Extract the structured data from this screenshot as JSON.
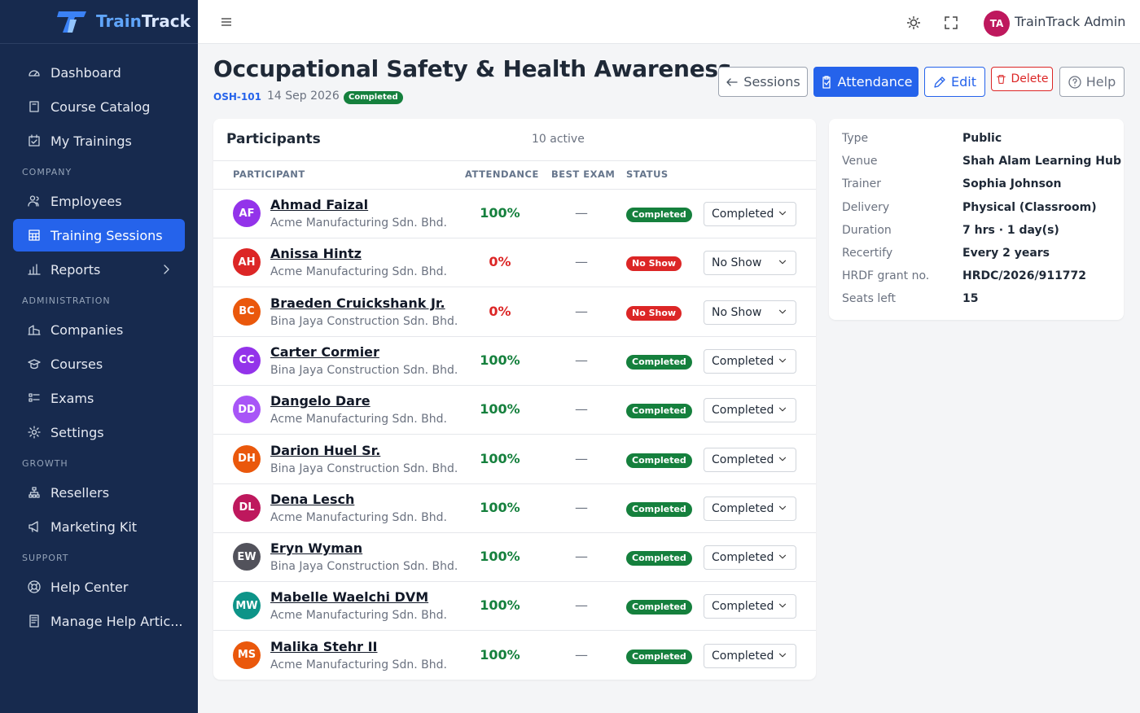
{
  "sidebar": {
    "brand_first": "Train",
    "brand_second": "Track",
    "groups": [
      {
        "items": [
          {
            "label": "Dashboard"
          },
          {
            "label": "Course Catalog"
          },
          {
            "label": "My Trainings"
          }
        ]
      },
      {
        "label": "COMPANY",
        "items": [
          {
            "label": "Employees"
          },
          {
            "label": "Training Sessions",
            "active": true
          },
          {
            "label": "Reports"
          }
        ]
      },
      {
        "label": "ADMINISTRATION",
        "items": [
          {
            "label": "Companies"
          },
          {
            "label": "Courses"
          },
          {
            "label": "Exams"
          },
          {
            "label": "Settings"
          }
        ]
      },
      {
        "label": "GROWTH",
        "items": [
          {
            "label": "Resellers"
          },
          {
            "label": "Marketing Kit"
          }
        ]
      },
      {
        "label": "SUPPORT",
        "items": [
          {
            "label": "Help Center"
          },
          {
            "label": "Manage Help Artic..."
          }
        ]
      }
    ]
  },
  "topbar": {
    "user_initials": "TA",
    "user_name": "TrainTrack Admin"
  },
  "header": {
    "title": "Occupational Safety & Health Awareness",
    "code": "OSH-101",
    "date": "14 Sep 2026",
    "status": "Completed",
    "buttons": [
      "Sessions",
      "Attendance",
      "Edit",
      "Delete",
      "Help"
    ]
  },
  "participants": {
    "title": "Participants",
    "count": "10 active",
    "columns": [
      "PARTICIPANT",
      "ATTENDANCE",
      "BEST EXAM",
      "STATUS"
    ],
    "rows": [
      {
        "initials": "AF",
        "avatar_color": "#9333ea",
        "name": "Ahmad Faizal",
        "company": "Acme Manufacturing Sdn. Bhd.",
        "attendance": "100%",
        "best_exam": "—",
        "status": "Completed",
        "color": "#15803d",
        "select": "Completed"
      },
      {
        "initials": "AH",
        "avatar_color": "#dc2626",
        "name": "Anissa Hintz",
        "company": "Acme Manufacturing Sdn. Bhd.",
        "attendance": "0%",
        "best_exam": "—",
        "status": "No Show",
        "color": "#dc2626",
        "select": "No Show"
      },
      {
        "initials": "BC",
        "avatar_color": "#ea580c",
        "name": "Braeden Cruickshank Jr.",
        "company": "Bina Jaya Construction Sdn. Bhd.",
        "attendance": "0%",
        "best_exam": "—",
        "status": "No Show",
        "color": "#dc2626",
        "select": "No Show"
      },
      {
        "initials": "CC",
        "avatar_color": "#9333ea",
        "name": "Carter Cormier",
        "company": "Bina Jaya Construction Sdn. Bhd.",
        "attendance": "100%",
        "best_exam": "—",
        "status": "Completed",
        "color": "#15803d",
        "select": "Completed"
      },
      {
        "initials": "DD",
        "avatar_color": "#a855f7",
        "name": "Dangelo Dare",
        "company": "Acme Manufacturing Sdn. Bhd.",
        "attendance": "100%",
        "best_exam": "—",
        "status": "Completed",
        "color": "#15803d",
        "select": "Completed"
      },
      {
        "initials": "DH",
        "avatar_color": "#ea580c",
        "name": "Darion Huel Sr.",
        "company": "Bina Jaya Construction Sdn. Bhd.",
        "attendance": "100%",
        "best_exam": "—",
        "status": "Completed",
        "color": "#15803d",
        "select": "Completed"
      },
      {
        "initials": "DL",
        "avatar_color": "#be185d",
        "name": "Dena Lesch",
        "company": "Acme Manufacturing Sdn. Bhd.",
        "attendance": "100%",
        "best_exam": "—",
        "status": "Completed",
        "color": "#15803d",
        "select": "Completed"
      },
      {
        "initials": "EW",
        "avatar_color": "#52525b",
        "name": "Eryn Wyman",
        "company": "Bina Jaya Construction Sdn. Bhd.",
        "attendance": "100%",
        "best_exam": "—",
        "status": "Completed",
        "color": "#15803d",
        "select": "Completed"
      },
      {
        "initials": "MW",
        "avatar_color": "#0d9488",
        "name": "Mabelle Waelchi DVM",
        "company": "Acme Manufacturing Sdn. Bhd.",
        "attendance": "100%",
        "best_exam": "—",
        "status": "Completed",
        "color": "#15803d",
        "select": "Completed"
      },
      {
        "initials": "MS",
        "avatar_color": "#ea580c",
        "name": "Malika Stehr II",
        "company": "Acme Manufacturing Sdn. Bhd.",
        "attendance": "100%",
        "best_exam": "—",
        "status": "Completed",
        "color": "#15803d",
        "select": "Completed"
      }
    ]
  },
  "details": [
    [
      "Type",
      "Public"
    ],
    [
      "Venue",
      "Shah Alam Learning Hub"
    ],
    [
      "Trainer",
      "Sophia Johnson"
    ],
    [
      "Delivery",
      "Physical (Classroom)"
    ],
    [
      "Duration",
      "7 hrs · 1 day(s)"
    ],
    [
      "Recertify",
      "Every 2 years"
    ],
    [
      "HRDF grant no.",
      "HRDC/2026/911772"
    ],
    [
      "Seats left",
      "15"
    ]
  ]
}
